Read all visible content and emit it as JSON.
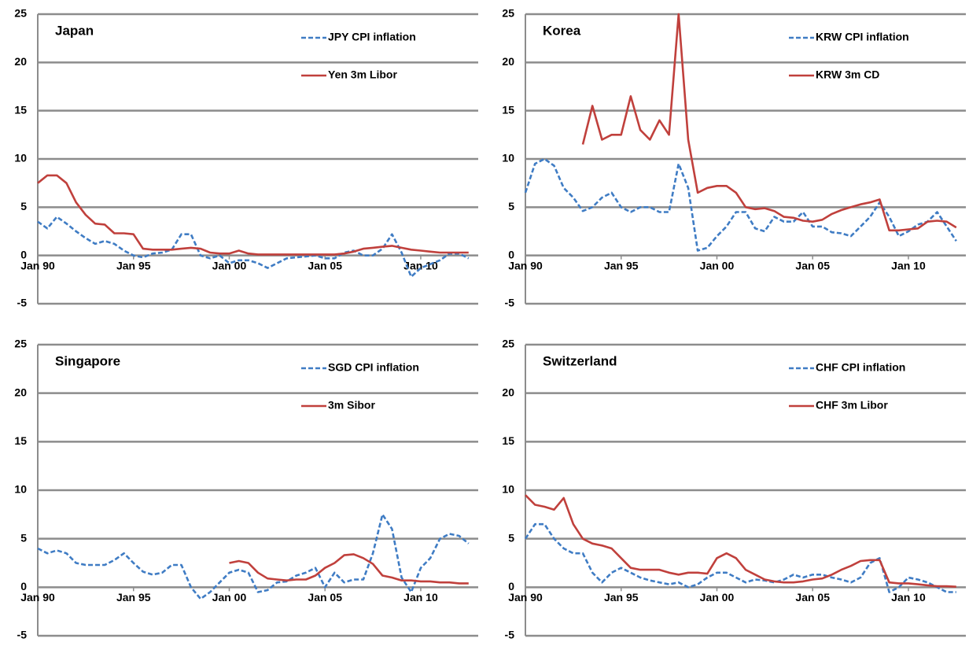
{
  "chart_data": [
    {
      "type": "line",
      "title": "Japan",
      "x": [
        1990,
        1990.5,
        1991,
        1991.5,
        1992,
        1992.5,
        1993,
        1993.5,
        1994,
        1994.5,
        1995,
        1995.5,
        1996,
        1996.5,
        1997,
        1997.5,
        1998,
        1998.5,
        1999,
        1999.5,
        2000,
        2000.5,
        2001,
        2001.5,
        2002,
        2002.5,
        2003,
        2003.5,
        2004,
        2004.5,
        2005,
        2005.5,
        2006,
        2006.5,
        2007,
        2007.5,
        2008,
        2008.5,
        2009,
        2009.5,
        2010,
        2010.5,
        2011,
        2011.5,
        2012,
        2012.5
      ],
      "series": [
        {
          "name": "JPY CPI inflation",
          "color": "#3f7cc4",
          "style": "dashed",
          "values": [
            3.5,
            2.8,
            4,
            3.3,
            2.5,
            1.8,
            1.2,
            1.5,
            1.2,
            0.5,
            0,
            -0.2,
            0.2,
            0.3,
            0.6,
            2.2,
            2.2,
            0,
            -0.3,
            0,
            -0.8,
            -0.5,
            -0.5,
            -0.8,
            -1.3,
            -0.8,
            -0.3,
            -0.2,
            -0.1,
            0,
            -0.3,
            -0.3,
            0.3,
            0.5,
            0,
            0,
            0.7,
            2.2,
            0.3,
            -2.2,
            -1.3,
            -0.9,
            -0.5,
            0.2,
            0.2,
            -0.3
          ]
        },
        {
          "name": "Yen 3m Libor",
          "color": "#c0403c",
          "style": "solid",
          "values": [
            7.5,
            8.3,
            8.3,
            7.5,
            5.5,
            4.2,
            3.3,
            3.2,
            2.3,
            2.3,
            2.2,
            0.7,
            0.6,
            0.6,
            0.6,
            0.7,
            0.8,
            0.7,
            0.3,
            0.2,
            0.2,
            0.5,
            0.2,
            0.1,
            0.1,
            0.1,
            0.1,
            0.1,
            0.1,
            0.1,
            0.1,
            0.1,
            0.2,
            0.4,
            0.7,
            0.8,
            0.9,
            1.0,
            0.8,
            0.6,
            0.5,
            0.4,
            0.3,
            0.3,
            0.3,
            0.3
          ]
        }
      ],
      "xlim": [
        1990,
        2013
      ],
      "xticks": [
        {
          "value": 1990,
          "label": "Jan 90"
        },
        {
          "value": 1995,
          "label": "Jan 95"
        },
        {
          "value": 2000,
          "label": "Jan 00"
        },
        {
          "value": 2005,
          "label": "Jan 05"
        },
        {
          "value": 2010,
          "label": "Jan 10"
        }
      ],
      "ylim": [
        -5,
        25
      ],
      "yticks": [
        -5,
        0,
        5,
        10,
        15,
        20,
        25
      ],
      "grid": true,
      "legend": "upper right"
    },
    {
      "type": "line",
      "title": "Korea",
      "x": [
        1990,
        1990.5,
        1991,
        1991.5,
        1992,
        1992.5,
        1993,
        1993.5,
        1994,
        1994.5,
        1995,
        1995.5,
        1996,
        1996.5,
        1997,
        1997.5,
        1998,
        1998.5,
        1999,
        1999.5,
        2000,
        2000.5,
        2001,
        2001.5,
        2002,
        2002.5,
        2003,
        2003.5,
        2004,
        2004.5,
        2005,
        2005.5,
        2006,
        2006.5,
        2007,
        2007.5,
        2008,
        2008.5,
        2009,
        2009.5,
        2010,
        2010.5,
        2011,
        2011.5,
        2012,
        2012.5
      ],
      "series": [
        {
          "name": "KRW CPI inflation",
          "color": "#3f7cc4",
          "style": "dashed",
          "values": [
            6.5,
            9.5,
            10,
            9.3,
            7,
            6,
            4.6,
            5,
            6,
            6.5,
            5,
            4.5,
            5,
            5,
            4.5,
            4.5,
            9.5,
            7,
            0.5,
            0.8,
            2,
            3,
            4.5,
            4.5,
            2.8,
            2.5,
            4,
            3.5,
            3.5,
            4.5,
            3,
            3,
            2.4,
            2.3,
            2,
            3,
            4,
            5.5,
            4,
            2,
            2.5,
            3.2,
            3.5,
            4.5,
            3,
            1.5
          ]
        },
        {
          "name": "KRW 3m CD",
          "color": "#c0403c",
          "style": "solid",
          "values": [
            null,
            null,
            null,
            null,
            null,
            null,
            11.5,
            15.5,
            12,
            12.5,
            12.5,
            16.5,
            13,
            12,
            14,
            12.5,
            25,
            12,
            6.5,
            7,
            7.2,
            7.2,
            6.5,
            5,
            4.8,
            4.9,
            4.6,
            4,
            3.9,
            3.6,
            3.5,
            3.7,
            4.3,
            4.7,
            5,
            5.3,
            5.5,
            5.8,
            2.6,
            2.6,
            2.7,
            2.8,
            3.5,
            3.6,
            3.5,
            2.9
          ]
        }
      ],
      "xlim": [
        1990,
        2013
      ],
      "xticks": [
        {
          "value": 1990,
          "label": "Jan 90"
        },
        {
          "value": 1995,
          "label": "Jan 95"
        },
        {
          "value": 2000,
          "label": "Jan 00"
        },
        {
          "value": 2005,
          "label": "Jan 05"
        },
        {
          "value": 2010,
          "label": "Jan 10"
        }
      ],
      "ylim": [
        -5,
        25
      ],
      "yticks": [
        -5,
        0,
        5,
        10,
        15,
        20,
        25
      ],
      "grid": true,
      "legend": "upper right"
    },
    {
      "type": "line",
      "title": "Singapore",
      "x": [
        1990,
        1990.5,
        1991,
        1991.5,
        1992,
        1992.5,
        1993,
        1993.5,
        1994,
        1994.5,
        1995,
        1995.5,
        1996,
        1996.5,
        1997,
        1997.5,
        1998,
        1998.5,
        1999,
        1999.5,
        2000,
        2000.5,
        2001,
        2001.5,
        2002,
        2002.5,
        2003,
        2003.5,
        2004,
        2004.5,
        2005,
        2005.5,
        2006,
        2006.5,
        2007,
        2007.5,
        2008,
        2008.5,
        2009,
        2009.5,
        2010,
        2010.5,
        2011,
        2011.5,
        2012,
        2012.5
      ],
      "series": [
        {
          "name": "SGD CPI inflation",
          "color": "#3f7cc4",
          "style": "dashed",
          "values": [
            4,
            3.5,
            3.8,
            3.5,
            2.5,
            2.3,
            2.3,
            2.3,
            2.8,
            3.5,
            2.5,
            1.6,
            1.3,
            1.5,
            2.3,
            2.3,
            0,
            -1.2,
            -0.5,
            0.5,
            1.5,
            1.8,
            1.5,
            -0.5,
            -0.3,
            0.5,
            0.6,
            1.2,
            1.5,
            2,
            0,
            1.5,
            0.5,
            0.8,
            0.8,
            3.5,
            7.5,
            6,
            1,
            -0.5,
            2,
            3,
            5,
            5.5,
            5.3,
            4.5
          ]
        },
        {
          "name": "3m Sibor",
          "color": "#c0403c",
          "style": "solid",
          "values": [
            null,
            null,
            null,
            null,
            null,
            null,
            null,
            null,
            null,
            null,
            null,
            null,
            null,
            null,
            null,
            null,
            null,
            null,
            null,
            null,
            2.5,
            2.7,
            2.5,
            1.5,
            0.9,
            0.8,
            0.7,
            0.8,
            0.8,
            1.2,
            2,
            2.5,
            3.3,
            3.4,
            3,
            2.4,
            1.2,
            1,
            0.7,
            0.7,
            0.6,
            0.6,
            0.5,
            0.5,
            0.4,
            0.4
          ]
        }
      ],
      "xlim": [
        1990,
        2013
      ],
      "xticks": [
        {
          "value": 1990,
          "label": "Jan 90"
        },
        {
          "value": 1995,
          "label": "Jan 95"
        },
        {
          "value": 2000,
          "label": "Jan 00"
        },
        {
          "value": 2005,
          "label": "Jan 05"
        },
        {
          "value": 2010,
          "label": "Jan 10"
        }
      ],
      "ylim": [
        -5,
        25
      ],
      "yticks": [
        -5,
        0,
        5,
        10,
        15,
        20,
        25
      ],
      "grid": true,
      "legend": "upper right"
    },
    {
      "type": "line",
      "title": "Switzerland",
      "x": [
        1990,
        1990.5,
        1991,
        1991.5,
        1992,
        1992.5,
        1993,
        1993.5,
        1994,
        1994.5,
        1995,
        1995.5,
        1996,
        1996.5,
        1997,
        1997.5,
        1998,
        1998.5,
        1999,
        1999.5,
        2000,
        2000.5,
        2001,
        2001.5,
        2002,
        2002.5,
        2003,
        2003.5,
        2004,
        2004.5,
        2005,
        2005.5,
        2006,
        2006.5,
        2007,
        2007.5,
        2008,
        2008.5,
        2009,
        2009.5,
        2010,
        2010.5,
        2011,
        2011.5,
        2012,
        2012.5
      ],
      "series": [
        {
          "name": "CHF CPI inflation",
          "color": "#3f7cc4",
          "style": "dashed",
          "values": [
            5,
            6.5,
            6.5,
            5,
            4,
            3.5,
            3.5,
            1.5,
            0.5,
            1.5,
            2,
            1.5,
            1,
            0.7,
            0.5,
            0.3,
            0.5,
            0,
            0.3,
            1,
            1.5,
            1.5,
            1,
            0.5,
            0.8,
            0.7,
            0.5,
            0.8,
            1.3,
            1,
            1.3,
            1.3,
            1,
            0.8,
            0.5,
            1,
            2.5,
            3,
            -0.5,
            0,
            1,
            0.8,
            0.5,
            0,
            -0.5,
            -0.5
          ]
        },
        {
          "name": "CHF 3m Libor",
          "color": "#c0403c",
          "style": "solid",
          "values": [
            9.5,
            8.5,
            8.3,
            8,
            9.2,
            6.5,
            5,
            4.5,
            4.3,
            4,
            3,
            2,
            1.8,
            1.8,
            1.8,
            1.5,
            1.3,
            1.5,
            1.5,
            1.4,
            3,
            3.5,
            3,
            1.8,
            1.3,
            0.8,
            0.6,
            0.5,
            0.5,
            0.6,
            0.8,
            0.9,
            1.3,
            1.8,
            2.2,
            2.7,
            2.8,
            2.8,
            0.5,
            0.4,
            0.4,
            0.3,
            0.2,
            0.1,
            0.1,
            0.05
          ]
        }
      ],
      "xlim": [
        1990,
        2013
      ],
      "xticks": [
        {
          "value": 1990,
          "label": "Jan 90"
        },
        {
          "value": 1995,
          "label": "Jan 95"
        },
        {
          "value": 2000,
          "label": "Jan 00"
        },
        {
          "value": 2005,
          "label": "Jan 05"
        },
        {
          "value": 2010,
          "label": "Jan 10"
        }
      ],
      "ylim": [
        -5,
        25
      ],
      "yticks": [
        -5,
        0,
        5,
        10,
        15,
        20,
        25
      ],
      "grid": true,
      "legend": "upper right"
    }
  ]
}
